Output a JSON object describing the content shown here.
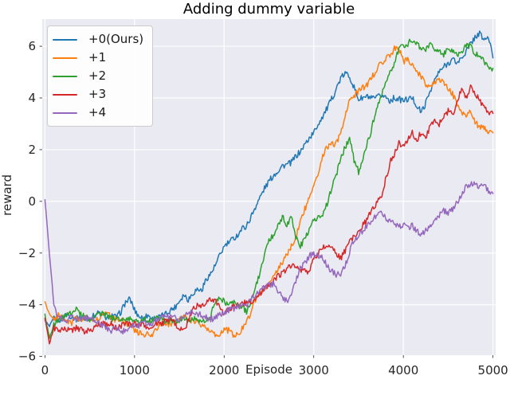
{
  "figure": {
    "background": "#ffffff",
    "axes_background": "#eaeaf2",
    "grid_color": "#ffffff",
    "text_color": "#262626"
  },
  "chart_data": {
    "type": "line",
    "title": "Adding dummy variable",
    "xlabel": "Episode",
    "ylabel": "reward",
    "grid": true,
    "legend_position": "upper-left",
    "xlim": [
      -30,
      5030
    ],
    "ylim": [
      -5.95,
      7.05
    ],
    "x_ticks": [
      0,
      1000,
      2000,
      3000,
      4000,
      5000
    ],
    "x_tick_labels": [
      "0",
      "1000",
      "2000",
      "3000",
      "4000",
      "5000"
    ],
    "y_ticks": [
      -6,
      -4,
      -2,
      0,
      2,
      4,
      6
    ],
    "y_tick_labels": [
      "−6",
      "−4",
      "−2",
      "0",
      "2",
      "4",
      "6"
    ],
    "x": [
      0,
      50,
      100,
      150,
      200,
      250,
      300,
      350,
      400,
      450,
      500,
      550,
      600,
      650,
      700,
      750,
      800,
      850,
      900,
      950,
      1000,
      1050,
      1100,
      1150,
      1200,
      1250,
      1300,
      1350,
      1400,
      1450,
      1500,
      1550,
      1600,
      1650,
      1700,
      1750,
      1800,
      1850,
      1900,
      1950,
      2000,
      2050,
      2100,
      2150,
      2200,
      2250,
      2300,
      2350,
      2400,
      2450,
      2500,
      2550,
      2600,
      2650,
      2700,
      2750,
      2800,
      2850,
      2900,
      2950,
      3000,
      3050,
      3100,
      3150,
      3200,
      3250,
      3300,
      3350,
      3400,
      3450,
      3500,
      3550,
      3600,
      3650,
      3700,
      3750,
      3800,
      3850,
      3900,
      3950,
      4000,
      4050,
      4100,
      4150,
      4200,
      4250,
      4300,
      4350,
      4400,
      4450,
      4500,
      4550,
      4600,
      4650,
      4700,
      4750,
      4800,
      4850,
      4900,
      4950,
      5000
    ],
    "series": [
      {
        "name": "+0(Ours)",
        "color": "#1f77b4",
        "values": [
          -4.6,
          -4.85,
          -4.5,
          -4.62,
          -4.48,
          -4.38,
          -4.45,
          -4.55,
          -4.5,
          -4.6,
          -4.52,
          -4.42,
          -4.3,
          -4.45,
          -4.52,
          -4.4,
          -4.5,
          -4.25,
          -3.9,
          -3.78,
          -4.2,
          -4.45,
          -4.52,
          -4.4,
          -4.55,
          -4.5,
          -4.45,
          -4.35,
          -4.2,
          -4.1,
          -3.85,
          -3.6,
          -3.8,
          -3.55,
          -3.4,
          -3.45,
          -3.0,
          -2.8,
          -2.5,
          -2.1,
          -1.75,
          -1.6,
          -1.45,
          -1.3,
          -1.05,
          -0.95,
          -0.6,
          -0.2,
          0.15,
          0.5,
          0.78,
          1.0,
          1.18,
          1.38,
          1.42,
          1.5,
          1.75,
          1.92,
          2.2,
          2.45,
          2.65,
          3.0,
          3.3,
          3.6,
          3.95,
          4.35,
          4.75,
          4.95,
          4.85,
          4.4,
          3.95,
          4.0,
          4.05,
          3.95,
          4.0,
          4.1,
          4.05,
          3.9,
          4.0,
          3.95,
          3.9,
          3.95,
          4.0,
          3.7,
          3.45,
          3.8,
          4.3,
          4.7,
          5.0,
          5.2,
          5.35,
          5.5,
          5.35,
          5.55,
          5.8,
          6.1,
          6.35,
          6.5,
          6.25,
          6.35,
          5.55
        ]
      },
      {
        "name": "+1",
        "color": "#ff7f0e",
        "values": [
          -3.9,
          -4.35,
          -4.55,
          -4.42,
          -4.5,
          -4.6,
          -4.7,
          -4.52,
          -4.6,
          -4.5,
          -4.55,
          -4.62,
          -4.5,
          -4.4,
          -4.35,
          -4.5,
          -4.62,
          -4.5,
          -4.7,
          -4.85,
          -5.0,
          -5.1,
          -5.2,
          -5.1,
          -5.15,
          -4.9,
          -4.78,
          -4.82,
          -4.72,
          -4.65,
          -4.6,
          -4.5,
          -4.55,
          -4.62,
          -4.7,
          -4.8,
          -4.95,
          -5.05,
          -5.2,
          -5.1,
          -4.95,
          -5.0,
          -5.15,
          -5.2,
          -4.9,
          -4.6,
          -4.3,
          -3.78,
          -3.5,
          -3.42,
          -3.2,
          -2.9,
          -2.6,
          -2.35,
          -2.05,
          -1.75,
          -1.35,
          -0.8,
          -0.3,
          0.1,
          0.55,
          1.15,
          1.75,
          2.1,
          2.2,
          2.25,
          2.6,
          3.3,
          3.9,
          4.1,
          4.25,
          4.4,
          4.5,
          4.8,
          5.1,
          5.35,
          5.5,
          5.65,
          5.9,
          5.95,
          5.4,
          5.5,
          5.3,
          5.0,
          4.8,
          4.55,
          4.45,
          4.6,
          4.75,
          4.55,
          4.35,
          4.15,
          3.8,
          3.45,
          3.3,
          3.5,
          3.05,
          2.9,
          2.8,
          2.72,
          2.65
        ]
      },
      {
        "name": "+2",
        "color": "#2ca02c",
        "values": [
          -4.4,
          -5.3,
          -4.8,
          -4.55,
          -4.5,
          -4.4,
          -4.3,
          -4.2,
          -4.35,
          -4.5,
          -4.55,
          -4.45,
          -4.35,
          -4.3,
          -4.45,
          -4.55,
          -4.5,
          -4.6,
          -4.55,
          -4.5,
          -4.6,
          -4.65,
          -4.55,
          -4.65,
          -4.6,
          -4.5,
          -4.55,
          -4.65,
          -4.6,
          -4.7,
          -4.6,
          -4.55,
          -4.6,
          -4.5,
          -4.6,
          -4.65,
          -4.55,
          -4.45,
          -3.85,
          -3.7,
          -3.85,
          -4.0,
          -3.9,
          -3.95,
          -4.1,
          -4.25,
          -3.9,
          -3.3,
          -2.75,
          -2.1,
          -1.5,
          -1.3,
          -0.9,
          -0.6,
          -0.95,
          -0.55,
          -1.35,
          -1.7,
          -1.5,
          -1.1,
          -0.75,
          -0.55,
          -0.5,
          -0.1,
          0.5,
          1.0,
          1.65,
          2.1,
          2.4,
          1.6,
          1.15,
          1.6,
          2.25,
          2.85,
          3.65,
          4.1,
          4.5,
          5.0,
          5.3,
          5.9,
          6.0,
          6.1,
          6.25,
          6.1,
          5.95,
          5.9,
          6.05,
          5.9,
          5.75,
          5.7,
          5.85,
          5.8,
          5.7,
          5.8,
          6.05,
          6.0,
          5.75,
          5.6,
          5.45,
          5.2,
          5.15
        ]
      },
      {
        "name": "+3",
        "color": "#d62728",
        "values": [
          -4.5,
          -5.5,
          -4.9,
          -5.0,
          -4.9,
          -4.95,
          -5.0,
          -4.9,
          -4.95,
          -5.05,
          -5.0,
          -4.9,
          -4.8,
          -4.7,
          -4.8,
          -4.75,
          -4.9,
          -4.8,
          -4.7,
          -4.8,
          -4.7,
          -4.8,
          -4.75,
          -4.9,
          -4.8,
          -4.7,
          -4.75,
          -4.6,
          -4.55,
          -4.7,
          -4.9,
          -5.0,
          -4.6,
          -4.2,
          -4.0,
          -4.05,
          -3.95,
          -3.8,
          -3.9,
          -4.05,
          -4.35,
          -4.2,
          -4.1,
          -4.0,
          -3.95,
          -3.9,
          -3.85,
          -3.8,
          -3.6,
          -3.4,
          -3.2,
          -3.1,
          -2.9,
          -2.75,
          -2.6,
          -2.45,
          -2.5,
          -2.62,
          -2.7,
          -2.75,
          -2.2,
          -2.0,
          -1.8,
          -1.75,
          -1.8,
          -2.0,
          -2.2,
          -1.9,
          -1.55,
          -1.35,
          -1.15,
          -0.9,
          -0.7,
          -0.3,
          -0.05,
          0.1,
          0.8,
          1.5,
          1.85,
          2.25,
          2.1,
          2.4,
          2.65,
          2.35,
          2.7,
          2.5,
          2.9,
          3.15,
          3.0,
          3.25,
          3.5,
          3.35,
          3.9,
          4.3,
          4.0,
          4.45,
          4.2,
          3.9,
          3.6,
          3.45,
          3.4
        ]
      },
      {
        "name": "+4",
        "color": "#9467bd",
        "values": [
          0.1,
          -2.0,
          -4.0,
          -4.5,
          -4.55,
          -4.6,
          -4.5,
          -4.55,
          -4.6,
          -4.5,
          -4.55,
          -4.6,
          -4.7,
          -4.8,
          -4.95,
          -5.0,
          -4.9,
          -5.0,
          -5.05,
          -4.9,
          -4.75,
          -4.8,
          -4.7,
          -4.75,
          -4.7,
          -4.6,
          -4.5,
          -4.4,
          -4.45,
          -4.5,
          -4.55,
          -4.5,
          -4.35,
          -4.3,
          -4.35,
          -4.4,
          -4.5,
          -4.55,
          -4.5,
          -4.4,
          -4.3,
          -4.2,
          -4.15,
          -4.1,
          -4.0,
          -4.05,
          -3.8,
          -3.6,
          -3.45,
          -3.35,
          -3.25,
          -3.2,
          -3.5,
          -3.7,
          -3.85,
          -3.6,
          -3.1,
          -2.6,
          -2.4,
          -2.1,
          -2.05,
          -2.1,
          -2.2,
          -2.5,
          -2.7,
          -2.85,
          -2.8,
          -2.5,
          -1.95,
          -1.5,
          -1.3,
          -1.15,
          -0.9,
          -0.7,
          -0.55,
          -0.35,
          -0.6,
          -0.8,
          -0.85,
          -1.0,
          -0.9,
          -1.05,
          -0.95,
          -1.15,
          -1.25,
          -1.15,
          -0.95,
          -0.75,
          -0.55,
          -0.35,
          -0.45,
          -0.3,
          -0.05,
          0.3,
          0.55,
          0.65,
          0.75,
          0.55,
          0.65,
          0.4,
          0.3
        ]
      }
    ]
  }
}
